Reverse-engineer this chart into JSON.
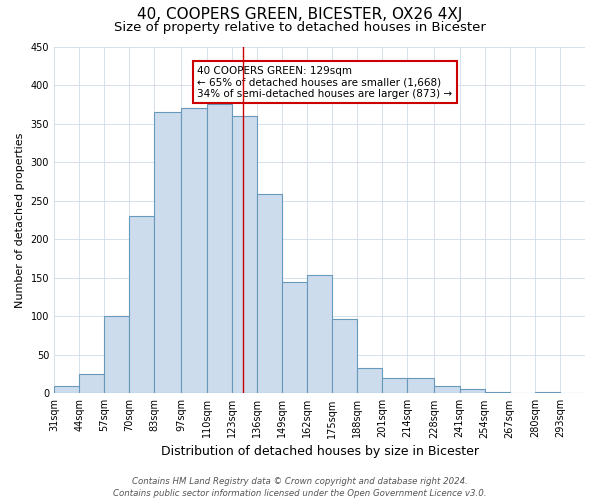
{
  "title": "40, COOPERS GREEN, BICESTER, OX26 4XJ",
  "subtitle": "Size of property relative to detached houses in Bicester",
  "xlabel": "Distribution of detached houses by size in Bicester",
  "ylabel": "Number of detached properties",
  "bar_labels": [
    "31sqm",
    "44sqm",
    "57sqm",
    "70sqm",
    "83sqm",
    "97sqm",
    "110sqm",
    "123sqm",
    "136sqm",
    "149sqm",
    "162sqm",
    "175sqm",
    "188sqm",
    "201sqm",
    "214sqm",
    "228sqm",
    "241sqm",
    "254sqm",
    "267sqm",
    "280sqm",
    "293sqm"
  ],
  "bar_heights": [
    10,
    25,
    100,
    230,
    365,
    370,
    375,
    360,
    258,
    145,
    153,
    97,
    33,
    20,
    20,
    10,
    5,
    2,
    0,
    2,
    0
  ],
  "bin_edges": [
    31,
    44,
    57,
    70,
    83,
    97,
    110,
    123,
    136,
    149,
    162,
    175,
    188,
    201,
    214,
    228,
    241,
    254,
    267,
    280,
    293,
    306
  ],
  "bar_color": "#ccdcec",
  "bar_edge_color": "#6699bb",
  "vline_x": 129,
  "vline_color": "#cc0000",
  "annotation_text": "40 COOPERS GREEN: 129sqm\n← 65% of detached houses are smaller (1,668)\n34% of semi-detached houses are larger (873) →",
  "annotation_box_facecolor": "#ffffff",
  "annotation_box_edgecolor": "#cc0000",
  "ylim": [
    0,
    450
  ],
  "yticks": [
    0,
    50,
    100,
    150,
    200,
    250,
    300,
    350,
    400,
    450
  ],
  "background_color": "#ffffff",
  "grid_color": "#d0dce8",
  "title_fontsize": 11,
  "subtitle_fontsize": 9.5,
  "xlabel_fontsize": 9,
  "ylabel_fontsize": 8,
  "tick_fontsize": 7,
  "annotation_fontsize": 7.5,
  "footer": "Contains HM Land Registry data © Crown copyright and database right 2024.\nContains public sector information licensed under the Open Government Licence v3.0.",
  "footer_fontsize": 6.2
}
